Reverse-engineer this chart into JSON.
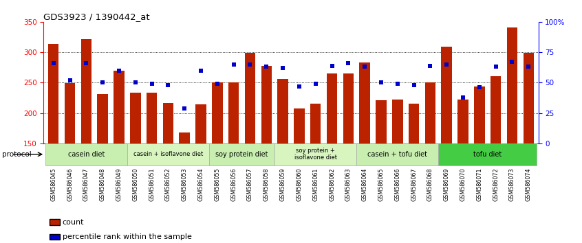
{
  "title": "GDS3923 / 1390442_at",
  "samples": [
    "GSM586045",
    "GSM586046",
    "GSM586047",
    "GSM586048",
    "GSM586049",
    "GSM586050",
    "GSM586051",
    "GSM586052",
    "GSM586053",
    "GSM586054",
    "GSM586055",
    "GSM586056",
    "GSM586057",
    "GSM586058",
    "GSM586059",
    "GSM586060",
    "GSM586061",
    "GSM586062",
    "GSM586063",
    "GSM586064",
    "GSM586065",
    "GSM586066",
    "GSM586067",
    "GSM586068",
    "GSM586069",
    "GSM586070",
    "GSM586071",
    "GSM586072",
    "GSM586073",
    "GSM586074"
  ],
  "counts": [
    314,
    249,
    322,
    231,
    270,
    233,
    233,
    216,
    168,
    214,
    250,
    250,
    299,
    278,
    256,
    208,
    215,
    265,
    265,
    283,
    221,
    222,
    215,
    250,
    309,
    222,
    244,
    261,
    341,
    299
  ],
  "percentile_ranks": [
    66,
    52,
    66,
    50,
    60,
    50,
    49,
    48,
    29,
    60,
    49,
    65,
    65,
    63,
    62,
    47,
    49,
    64,
    66,
    63,
    50,
    49,
    48,
    64,
    65,
    38,
    46,
    63,
    67,
    63
  ],
  "groups": [
    {
      "label": "casein diet",
      "start": 0,
      "end": 4,
      "color": "#c8efb0",
      "light": true
    },
    {
      "label": "casein + isoflavone diet",
      "start": 5,
      "end": 9,
      "color": "#d8f5c0",
      "light": true
    },
    {
      "label": "soy protein diet",
      "start": 10,
      "end": 13,
      "color": "#c8efb0",
      "light": true
    },
    {
      "label": "soy protein +\nisoflavone diet",
      "start": 14,
      "end": 18,
      "color": "#d8f5c0",
      "light": true
    },
    {
      "label": "casein + tofu diet",
      "start": 19,
      "end": 23,
      "color": "#c8efb0",
      "light": true
    },
    {
      "label": "tofu diet",
      "start": 24,
      "end": 29,
      "color": "#44cc44",
      "light": false
    }
  ],
  "bar_color": "#bb2200",
  "dot_color": "#0000cc",
  "ylim_left": [
    150,
    350
  ],
  "ylim_right": [
    0,
    100
  ],
  "yticks_left": [
    150,
    200,
    250,
    300,
    350
  ],
  "yticks_right": [
    0,
    25,
    50,
    75,
    100
  ],
  "ytick_right_labels": [
    "0",
    "25",
    "50",
    "75",
    "100%"
  ],
  "grid_vals": [
    200,
    250,
    300
  ],
  "bg_color": "#ffffff",
  "xticklabel_bg": "#e8e8e8",
  "protocol_label": "protocol"
}
